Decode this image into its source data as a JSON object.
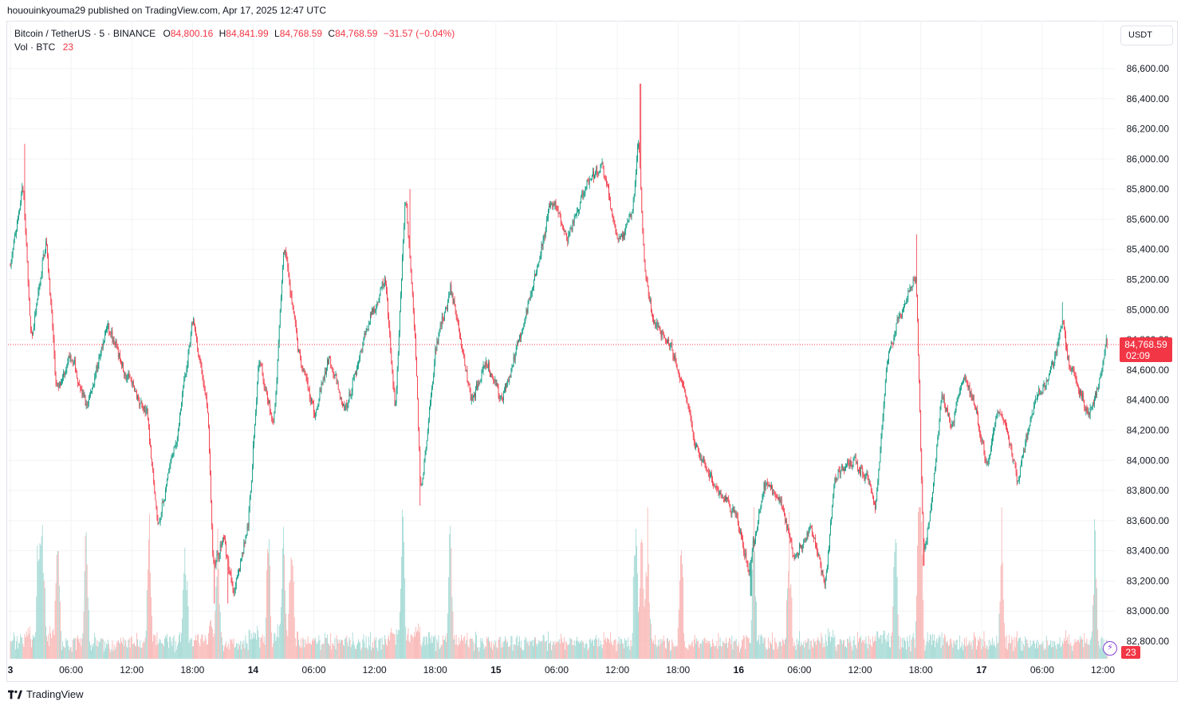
{
  "publisher_line": "hououinkyouma29 published on TradingView.com, Apr 17, 2025 12:47 UTC",
  "legend": {
    "symbol": "Bitcoin / TetherUS · 5 · BINANCE",
    "open_label": "O",
    "open": "84,800.16",
    "high_label": "H",
    "high": "84,841.99",
    "low_label": "L",
    "low": "84,768.59",
    "close_label": "C",
    "close": "84,768.59",
    "change": "−31.57 (−0.04%)",
    "vol_label": "Vol · BTC",
    "vol_value": "23"
  },
  "currency_button": "USDT",
  "footer_brand": "TradingView",
  "colors": {
    "up": "#089981",
    "down": "#f23645",
    "up_vol": "#92d2cc",
    "down_vol": "#f7a9a7",
    "grid": "#f2f3f5"
  },
  "chart_data": {
    "type": "candlestick",
    "title": "Bitcoin / TetherUS · 5 · BINANCE",
    "y_axis": {
      "unit": "USDT",
      "range": [
        82680,
        86800
      ],
      "ticks": [
        82800,
        83000,
        83200,
        83400,
        83600,
        83800,
        84000,
        84200,
        84400,
        84600,
        84800,
        85000,
        85200,
        85400,
        85600,
        85800,
        86000,
        86200,
        86400,
        86600
      ],
      "tick_labels": [
        "82,800.00",
        "83,000.00",
        "83,200.00",
        "83,400.00",
        "83,600.00",
        "83,800.00",
        "84,000.00",
        "84,200.00",
        "84,400.00",
        "84,600.00",
        "84,800.00",
        "85,000.00",
        "85,200.00",
        "85,400.00",
        "85,600.00",
        "85,800.00",
        "86,000.00",
        "86,200.00",
        "86,400.00",
        "86,600.00"
      ]
    },
    "x_axis": {
      "unit": "hours from Apr 13 00:00 UTC",
      "range": [
        0,
        108.5
      ],
      "ticks": [
        {
          "h": 0,
          "label": "3"
        },
        {
          "h": 6,
          "label": "06:00"
        },
        {
          "h": 12,
          "label": "12:00"
        },
        {
          "h": 18,
          "label": "18:00"
        },
        {
          "h": 24,
          "label": "14"
        },
        {
          "h": 30,
          "label": "06:00"
        },
        {
          "h": 36,
          "label": "12:00"
        },
        {
          "h": 42,
          "label": "18:00"
        },
        {
          "h": 48,
          "label": "15"
        },
        {
          "h": 54,
          "label": "06:00"
        },
        {
          "h": 60,
          "label": "12:00"
        },
        {
          "h": 66,
          "label": "18:00"
        },
        {
          "h": 72,
          "label": "16"
        },
        {
          "h": 78,
          "label": "06:00"
        },
        {
          "h": 84,
          "label": "12:00"
        },
        {
          "h": 90,
          "label": "18:00"
        },
        {
          "h": 96,
          "label": "17"
        },
        {
          "h": 102,
          "label": "06:00"
        },
        {
          "h": 108,
          "label": "12:00"
        }
      ]
    },
    "price_path": [
      [
        0,
        85300
      ],
      [
        1.2,
        85850
      ],
      [
        2.0,
        84750
      ],
      [
        3.5,
        85500
      ],
      [
        4.5,
        84450
      ],
      [
        6.0,
        84700
      ],
      [
        7.5,
        84350
      ],
      [
        9.5,
        84900
      ],
      [
        11.5,
        84550
      ],
      [
        13.5,
        84300
      ],
      [
        14.5,
        83550
      ],
      [
        16.5,
        84200
      ],
      [
        18.0,
        84950
      ],
      [
        19.5,
        84300
      ],
      [
        20.0,
        83250
      ],
      [
        21.0,
        83500
      ],
      [
        22.0,
        83100
      ],
      [
        23.5,
        83600
      ],
      [
        24.5,
        84700
      ],
      [
        26.0,
        84200
      ],
      [
        27.0,
        85450
      ],
      [
        28.5,
        84700
      ],
      [
        30.0,
        84300
      ],
      [
        31.5,
        84700
      ],
      [
        33.0,
        84300
      ],
      [
        35.0,
        84850
      ],
      [
        37.0,
        85200
      ],
      [
        38.0,
        84300
      ],
      [
        39.0,
        85800
      ],
      [
        40.0,
        84750
      ],
      [
        40.5,
        83750
      ],
      [
        42.0,
        84750
      ],
      [
        43.5,
        85150
      ],
      [
        45.5,
        84400
      ],
      [
        47.0,
        84650
      ],
      [
        48.5,
        84400
      ],
      [
        50.5,
        84850
      ],
      [
        52.0,
        85300
      ],
      [
        53.5,
        85750
      ],
      [
        55.0,
        85450
      ],
      [
        57.0,
        85850
      ],
      [
        58.5,
        85950
      ],
      [
        60.0,
        85450
      ],
      [
        61.5,
        85650
      ],
      [
        62.0,
        86200
      ],
      [
        62.7,
        85200
      ],
      [
        63.5,
        84900
      ],
      [
        65.0,
        84800
      ],
      [
        66.5,
        84500
      ],
      [
        67.5,
        84100
      ],
      [
        69.5,
        83850
      ],
      [
        71.5,
        83650
      ],
      [
        73.0,
        83300
      ],
      [
        74.5,
        83850
      ],
      [
        76.0,
        83750
      ],
      [
        77.5,
        83350
      ],
      [
        79.0,
        83550
      ],
      [
        80.5,
        83200
      ],
      [
        81.5,
        83900
      ],
      [
        83.0,
        84000
      ],
      [
        84.5,
        83900
      ],
      [
        85.5,
        83650
      ],
      [
        86.5,
        84600
      ],
      [
        87.5,
        84900
      ],
      [
        89.5,
        85250
      ],
      [
        90.2,
        83350
      ],
      [
        91.0,
        83700
      ],
      [
        92.0,
        84450
      ],
      [
        93.0,
        84200
      ],
      [
        94.0,
        84550
      ],
      [
        95.0,
        84450
      ],
      [
        96.5,
        83950
      ],
      [
        97.5,
        84350
      ],
      [
        98.5,
        84200
      ],
      [
        99.5,
        83850
      ],
      [
        101.0,
        84350
      ],
      [
        102.5,
        84550
      ],
      [
        103.5,
        84750
      ],
      [
        104.0,
        84950
      ],
      [
        104.5,
        84650
      ],
      [
        105.5,
        84500
      ],
      [
        106.5,
        84300
      ],
      [
        107.5,
        84500
      ],
      [
        108.3,
        84800
      ]
    ],
    "spikes": [
      {
        "h": 1.4,
        "high": 86100
      },
      {
        "h": 20.2,
        "low": 83050
      },
      {
        "h": 21.5,
        "low": 83050
      },
      {
        "h": 39.5,
        "high": 85800
      },
      {
        "h": 40.5,
        "low": 83700
      },
      {
        "h": 62.3,
        "high": 86500
      },
      {
        "h": 73.2,
        "low": 83100
      },
      {
        "h": 80.5,
        "low": 83150
      },
      {
        "h": 89.6,
        "high": 85500
      },
      {
        "h": 90.3,
        "low": 83300
      },
      {
        "h": 104.0,
        "high": 85050
      }
    ],
    "last_price": 84768.59,
    "last_price_label": "84,768.59",
    "countdown": "02:09",
    "volume": {
      "unit": "BTC",
      "last": 23,
      "last_label": "23",
      "spike_hours": [
        2.8,
        3.2,
        4.7,
        7.5,
        13.7,
        17.3,
        20.5,
        25.5,
        27.0,
        27.8,
        38.8,
        43.5,
        61.8,
        62.4,
        63.0,
        66.3,
        73.5,
        77.0,
        87.5,
        89.8,
        90.0,
        98.0,
        107.2
      ]
    }
  }
}
